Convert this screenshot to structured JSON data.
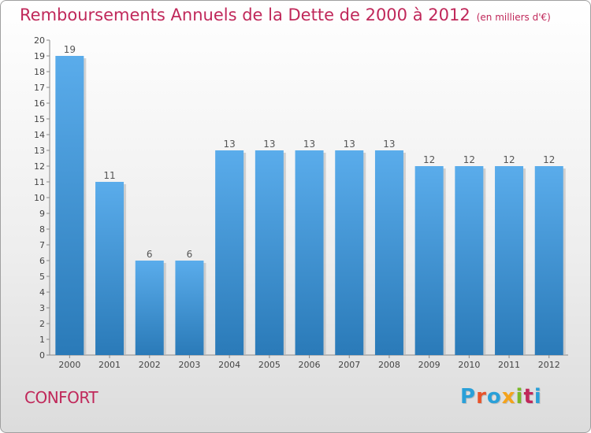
{
  "title": "Remboursements Annuels de la Dette de 2000 à 2012",
  "unit": "(en milliers d'€)",
  "commune": "CONFORT",
  "logo": {
    "text": "Proxiti",
    "colors": [
      "#2aa0d8",
      "#e8532a",
      "#2aa0d8",
      "#f4a31c",
      "#7ab828",
      "#c0285a",
      "#2aa0d8"
    ]
  },
  "chart_data": {
    "type": "bar",
    "title": "Remboursements Annuels de la Dette de 2000 à 2012",
    "xlabel": "",
    "ylabel": "",
    "ylim": [
      0,
      20
    ],
    "yticks": [
      0,
      1,
      2,
      3,
      4,
      5,
      6,
      7,
      8,
      9,
      10,
      11,
      12,
      13,
      14,
      15,
      16,
      17,
      18,
      19,
      20
    ],
    "grid": false,
    "categories": [
      "2000",
      "2001",
      "2002",
      "2003",
      "2004",
      "2005",
      "2006",
      "2007",
      "2008",
      "2009",
      "2010",
      "2011",
      "2012"
    ],
    "values": [
      19,
      11,
      6,
      6,
      13,
      13,
      13,
      13,
      13,
      12,
      12,
      12,
      12
    ],
    "colors": {
      "bar_top": "#5aaceb",
      "bar_bottom": "#2a7ab8",
      "bar_shadow": "#b8b8b8"
    }
  }
}
